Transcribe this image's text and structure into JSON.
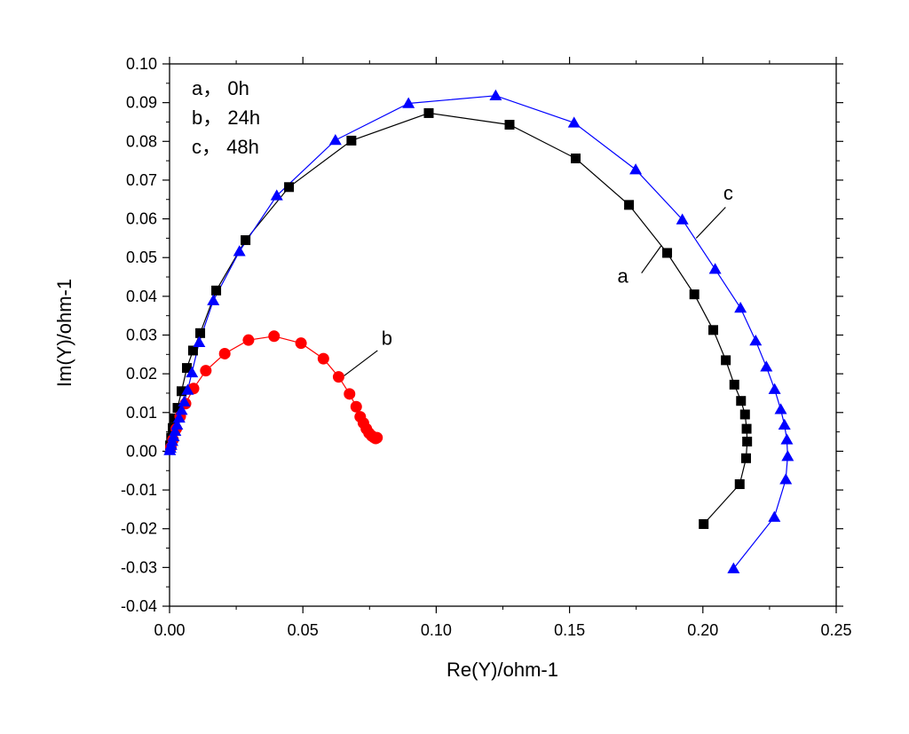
{
  "chart_data": {
    "type": "scatter",
    "xlabel": "Re(Y)/ohm-1",
    "ylabel": "Im(Y)/ohm-1",
    "xlim": [
      0,
      0.25
    ],
    "ylim": [
      -0.04,
      0.1
    ],
    "x_ticks": [
      0.0,
      0.05,
      0.1,
      0.15,
      0.2,
      0.25
    ],
    "y_ticks": [
      -0.04,
      -0.03,
      -0.02,
      -0.01,
      0.0,
      0.01,
      0.02,
      0.03,
      0.04,
      0.05,
      0.06,
      0.07,
      0.08,
      0.09,
      0.1
    ],
    "x_tick_labels": [
      "0.00",
      "0.05",
      "0.10",
      "0.15",
      "0.20",
      "0.25"
    ],
    "y_tick_labels": [
      "-0.04",
      "-0.03",
      "-0.02",
      "-0.01",
      "0.00",
      "0.01",
      "0.02",
      "0.03",
      "0.04",
      "0.05",
      "0.06",
      "0.07",
      "0.08",
      "0.09",
      "0.10"
    ],
    "legend": [
      "a， 0h",
      "b， 24h",
      "c， 48h"
    ],
    "legend_position": "top-left",
    "grid": false,
    "series": [
      {
        "key": "a",
        "color": "#000000",
        "marker": "square",
        "x": [
          0.0002,
          0.0006,
          0.0012,
          0.002,
          0.003,
          0.0045,
          0.0065,
          0.0088,
          0.0115,
          0.0175,
          0.0285,
          0.0448,
          0.0682,
          0.0972,
          0.1275,
          0.1523,
          0.1723,
          0.1866,
          0.1968,
          0.2039,
          0.2086,
          0.2118,
          0.2143,
          0.2158,
          0.2164,
          0.2166,
          0.2162,
          0.2138,
          0.2003
        ],
        "y": [
          0.0015,
          0.0035,
          0.006,
          0.0085,
          0.0112,
          0.0155,
          0.0215,
          0.026,
          0.0305,
          0.0415,
          0.0545,
          0.0682,
          0.0802,
          0.0873,
          0.0843,
          0.0756,
          0.0636,
          0.0512,
          0.0405,
          0.0313,
          0.0235,
          0.0172,
          0.013,
          0.0095,
          0.0058,
          0.0025,
          -0.0018,
          -0.0085,
          -0.0188
        ]
      },
      {
        "key": "b",
        "color": "#ff0000",
        "marker": "circle",
        "x": [
          0.0005,
          0.0013,
          0.0025,
          0.004,
          0.006,
          0.009,
          0.0136,
          0.0207,
          0.0296,
          0.0392,
          0.0493,
          0.0577,
          0.0634,
          0.0675,
          0.07,
          0.0715,
          0.0727,
          0.0738,
          0.0748,
          0.0758,
          0.0766,
          0.0773,
          0.0778
        ],
        "y": [
          0.001,
          0.003,
          0.0058,
          0.009,
          0.0123,
          0.0162,
          0.0208,
          0.0252,
          0.0287,
          0.0297,
          0.0279,
          0.0239,
          0.0192,
          0.0148,
          0.0115,
          0.0089,
          0.0073,
          0.0058,
          0.0047,
          0.004,
          0.0036,
          0.0033,
          0.0035
        ]
      },
      {
        "key": "c",
        "color": "#0000ff",
        "marker": "triangle",
        "x": [
          0.0001,
          0.0003,
          0.0006,
          0.001,
          0.0015,
          0.0021,
          0.0028,
          0.0036,
          0.0045,
          0.0055,
          0.0068,
          0.0084,
          0.0111,
          0.0164,
          0.0262,
          0.0402,
          0.0622,
          0.0896,
          0.1223,
          0.1517,
          0.1748,
          0.1923,
          0.2046,
          0.2141,
          0.2198,
          0.2238,
          0.2269,
          0.2292,
          0.2306,
          0.2315,
          0.2318,
          0.2311,
          0.2268,
          0.2115
        ],
        "y": [
          0.0002,
          0.0008,
          0.0016,
          0.0026,
          0.0038,
          0.0052,
          0.0068,
          0.0086,
          0.0106,
          0.0128,
          0.0158,
          0.0203,
          0.0281,
          0.0389,
          0.0516,
          0.066,
          0.0803,
          0.0898,
          0.0918,
          0.0848,
          0.0727,
          0.0598,
          0.047,
          0.037,
          0.0285,
          0.0218,
          0.016,
          0.0108,
          0.0068,
          0.003,
          -0.0013,
          -0.0073,
          -0.017,
          -0.0303
        ]
      }
    ],
    "annotations": [
      {
        "label": "a",
        "text_x": 0.17,
        "text_y": 0.0435,
        "line_from": [
          0.177,
          0.046
        ],
        "line_to": [
          0.1843,
          0.053
        ]
      },
      {
        "label": "b",
        "text_x": 0.0815,
        "text_y": 0.0275,
        "line_from": [
          0.078,
          0.026
        ],
        "line_to": [
          0.0655,
          0.0195
        ]
      },
      {
        "label": "c",
        "text_x": 0.2095,
        "text_y": 0.065,
        "line_from": [
          0.2085,
          0.063
        ],
        "line_to": [
          0.1975,
          0.055
        ]
      }
    ]
  }
}
